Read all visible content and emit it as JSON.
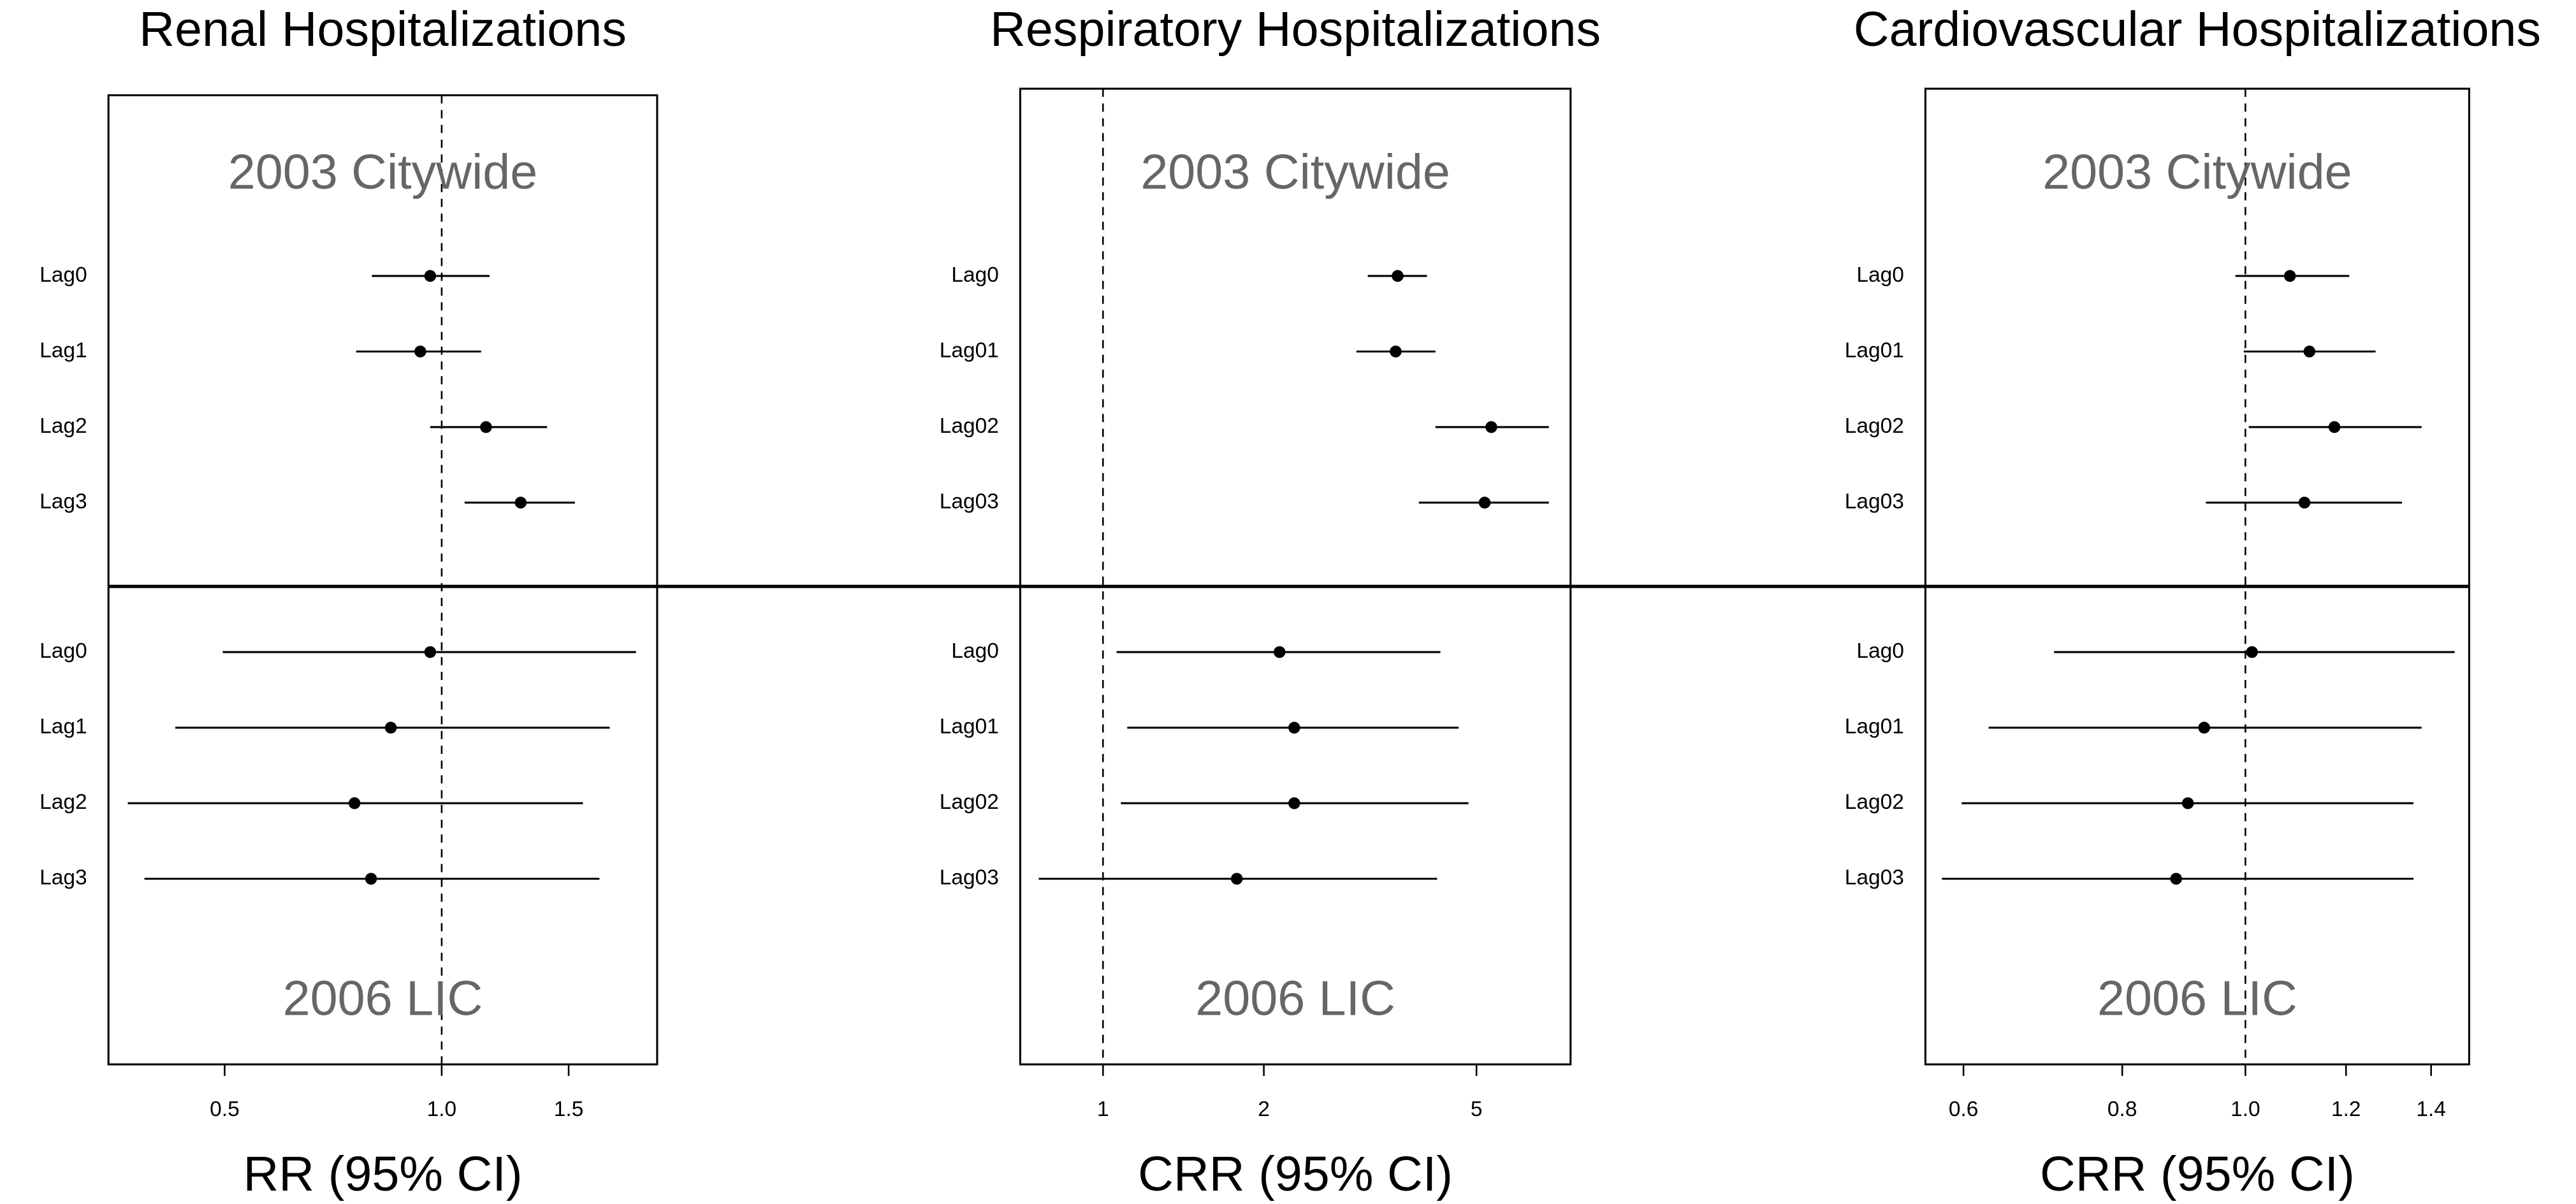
{
  "chart_data": [
    {
      "type": "forest",
      "title": "Renal Hospitalizations",
      "xlabel": "RR (95% CI)",
      "log_x": true,
      "xlim": [
        0.345,
        1.99
      ],
      "xticks": [
        0.5,
        {
          "value": 1,
          "label": "1.0"
        },
        1.5
      ],
      "reference": 1,
      "groups": [
        {
          "name": "2003 Citywide",
          "categories": [
            "Lag0",
            "Lag1",
            "Lag2",
            "Lag3"
          ],
          "values": [
            0.964,
            0.934,
            1.152,
            1.287
          ],
          "lower": [
            0.8,
            0.761,
            0.964,
            1.076
          ],
          "upper": [
            1.165,
            1.134,
            1.4,
            1.53
          ]
        },
        {
          "name": "2006 LIC",
          "categories": [
            "Lag0",
            "Lag1",
            "Lag2",
            "Lag3"
          ],
          "values": [
            0.964,
            0.85,
            0.757,
            0.798
          ],
          "lower": [
            0.497,
            0.427,
            0.367,
            0.387
          ],
          "upper": [
            1.86,
            1.71,
            1.57,
            1.655
          ]
        }
      ]
    },
    {
      "type": "forest",
      "title": "Respiratory Hospitalizations",
      "xlabel": "CRR (95% CI)",
      "log_x": true,
      "xlim": [
        0.7,
        7.5
      ],
      "xticks": [
        1,
        2,
        5
      ],
      "reference": 1,
      "groups": [
        {
          "name": "2003 Citywide",
          "categories": [
            "Lag0",
            "Lag01",
            "Lag02",
            "Lag03"
          ],
          "values": [
            3.56,
            3.53,
            5.33,
            5.18
          ],
          "lower": [
            3.13,
            2.98,
            4.19,
            3.9
          ],
          "upper": [
            4.04,
            4.19,
            6.83,
            6.83
          ]
        },
        {
          "name": "2006 LIC",
          "categories": [
            "Lag0",
            "Lag01",
            "Lag02",
            "Lag03"
          ],
          "values": [
            2.14,
            2.28,
            2.28,
            1.78
          ],
          "lower": [
            1.06,
            1.11,
            1.08,
            0.758
          ],
          "upper": [
            4.28,
            4.63,
            4.83,
            4.22
          ]
        }
      ]
    },
    {
      "type": "forest",
      "title": "Cardiovascular Hospitalizations",
      "xlabel": "CRR (95% CI)",
      "log_x": true,
      "xlim": [
        0.56,
        1.5
      ],
      "xticks": [
        0.6,
        0.8,
        {
          "value": 1,
          "label": "1.0"
        },
        1.2,
        1.4
      ],
      "reference": 1,
      "groups": [
        {
          "name": "2003 Citywide",
          "categories": [
            "Lag0",
            "Lag01",
            "Lag02",
            "Lag03"
          ],
          "values": [
            1.084,
            1.123,
            1.175,
            1.113
          ],
          "lower": [
            0.982,
            0.997,
            1.006,
            0.931
          ],
          "upper": [
            1.207,
            1.266,
            1.376,
            1.328
          ]
        },
        {
          "name": "2006 LIC",
          "categories": [
            "Lag0",
            "Lag01",
            "Lag02",
            "Lag03"
          ],
          "values": [
            1.012,
            0.928,
            0.901,
            0.882
          ],
          "lower": [
            0.707,
            0.628,
            0.598,
            0.577
          ],
          "upper": [
            1.461,
            1.376,
            1.356,
            1.356
          ]
        }
      ]
    }
  ]
}
